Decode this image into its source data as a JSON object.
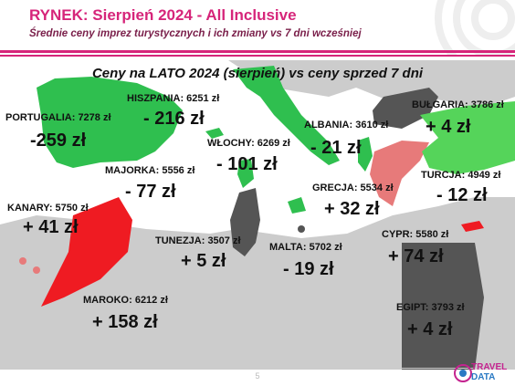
{
  "header": {
    "title": "RYNEK: Sierpień 2024 - All Inclusive",
    "subtitle": "Średnie ceny imprez turystycznych i ich zmiany vs 7 dni wcześniej"
  },
  "map": {
    "title": "Ceny na LATO 2024 (sierpień) vs ceny sprzed 7 dni",
    "countries": {
      "portugalia": {
        "label": "PORTUGALIA: 7278 zł",
        "change": "-259 zł"
      },
      "hiszpania": {
        "label": "HISZPANIA: 6251 zł",
        "change": "- 216 zł"
      },
      "majorka": {
        "label": "MAJORKA: 5556 zł",
        "change": "- 77 zł"
      },
      "wlochy": {
        "label": "WŁOCHY: 6269 zł",
        "change": "- 101 zł"
      },
      "albania": {
        "label": "ALBANIA: 3610 zł",
        "change": "- 21 zł"
      },
      "bulgaria": {
        "label": "BUŁGARIA: 3786 zł",
        "change": "+ 4 zł"
      },
      "turcja": {
        "label": "TURCJA: 4949 zł",
        "change": "- 12 zł"
      },
      "grecja": {
        "label": "GRECJA: 5534 zł",
        "change": "+ 32 zł"
      },
      "kanary": {
        "label": "KANARY: 5750 zł",
        "change": "+ 41 zł"
      },
      "tunezja": {
        "label": "TUNEZJA: 3507 zł",
        "change": "+ 5 zł"
      },
      "malta": {
        "label": "MALTA: 5702 zł",
        "change": "- 19 zł"
      },
      "cypr": {
        "label": "CYPR: 5580 zł",
        "change": "+ 74 zł"
      },
      "maroko": {
        "label": "MAROKO: 6212 zł",
        "change": "+ 158 zł"
      },
      "egipt": {
        "label": "EGIPT: 3793 zł",
        "change": "+ 4 zł"
      }
    },
    "legend_colors": {
      "decrease": "#2fbf4f",
      "increase": "#ef1b22",
      "small_change": "#555555",
      "slight_increase": "#e77a7a"
    }
  },
  "footer": {
    "page_number": "5",
    "logo_text_1": "TRAVEL",
    "logo_text_2": "DATA"
  }
}
